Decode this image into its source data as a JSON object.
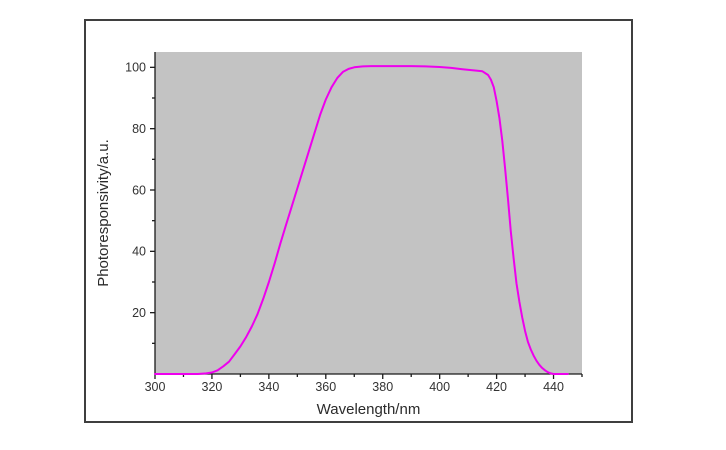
{
  "figure": {
    "background_color": "#ffffff",
    "frame_border_color": "#3f3f3f"
  },
  "chart_data": {
    "type": "line",
    "title": "",
    "xlabel": "Wavelength/nm",
    "ylabel": "Photoresponsivity/a.u.",
    "xlim": [
      300,
      450
    ],
    "ylim": [
      0,
      105
    ],
    "x_major_ticks": [
      300,
      320,
      340,
      360,
      380,
      400,
      420,
      440
    ],
    "x_minor_ticks": [
      310,
      330,
      350,
      370,
      390,
      410,
      430,
      450
    ],
    "y_major_ticks": [
      20,
      40,
      60,
      80,
      100
    ],
    "y_minor_ticks": [
      10,
      30,
      50,
      70,
      90
    ],
    "grid": false,
    "legend": "none",
    "plot_bg_color": "#c3c3c3",
    "axis_color": "#1a1a1a",
    "tick_label_color": "#333333",
    "series": [
      {
        "name": "photoresponsivity",
        "color": "#ee00ee",
        "line_width": 2,
        "x": [
          300,
          305,
          310,
          315,
          318,
          320,
          322,
          324,
          326,
          328,
          330,
          332,
          334,
          336,
          338,
          340,
          342,
          344,
          346,
          348,
          350,
          352,
          354,
          356,
          358,
          360,
          362,
          364,
          366,
          368,
          370,
          373,
          376,
          380,
          385,
          390,
          395,
          400,
          404,
          408,
          412,
          415,
          417,
          418,
          419,
          420,
          421,
          422,
          423,
          424,
          425,
          426,
          427,
          428,
          429,
          430,
          431,
          432,
          433,
          434,
          435,
          436,
          437,
          438,
          439,
          440,
          442,
          445
        ],
        "y": [
          0,
          0,
          0,
          0,
          0.2,
          0.5,
          1.2,
          2.5,
          4,
          6.5,
          9,
          12,
          15.5,
          19.5,
          24.5,
          30,
          36,
          42.5,
          48.5,
          54.5,
          60.5,
          66.5,
          72.5,
          78.5,
          84.5,
          89.5,
          93.5,
          96.5,
          98.5,
          99.5,
          100,
          100.3,
          100.4,
          100.4,
          100.4,
          100.4,
          100.3,
          100.1,
          99.8,
          99.4,
          99,
          98.7,
          97.5,
          96,
          93.5,
          89,
          83.5,
          76,
          67,
          57,
          46.5,
          37.5,
          29.5,
          23.5,
          18.5,
          14,
          10.5,
          8,
          6,
          4.3,
          3,
          2,
          1.2,
          0.6,
          0.2,
          0,
          0,
          0
        ]
      }
    ]
  }
}
